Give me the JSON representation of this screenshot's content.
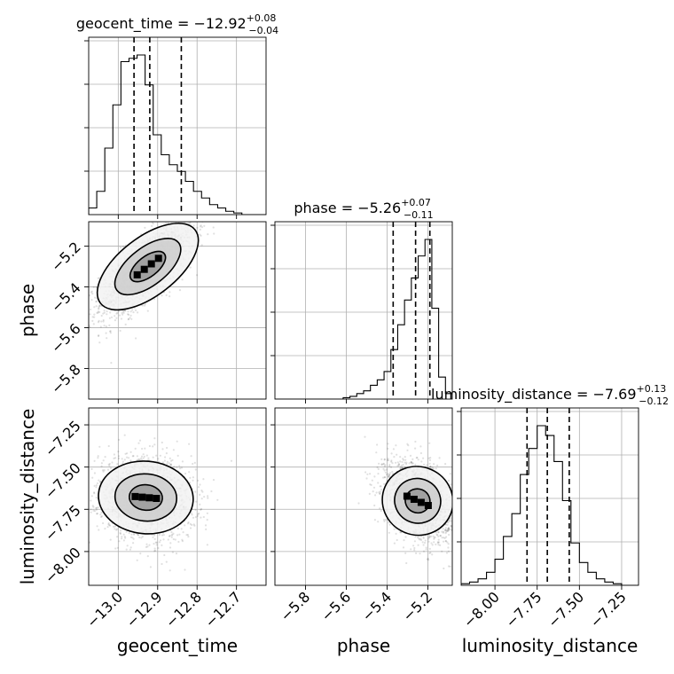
{
  "chart_data": {
    "type": "corner",
    "grid": true,
    "parameters": [
      {
        "name": "geocent_time",
        "title_main": "geocent_time = −12.92",
        "title_sup": "+0.08",
        "title_sub": "−0.04",
        "range": [
          -13.075,
          -12.625
        ],
        "ticks": [
          -13.0,
          -12.9,
          -12.8,
          -12.7
        ],
        "tick_labels": [
          "−13.0",
          "−12.9",
          "−12.8",
          "−12.7"
        ],
        "quantiles": [
          -12.96,
          -12.92,
          -12.84
        ],
        "hist_counts": [
          2,
          7,
          20,
          33,
          46,
          47,
          48,
          39,
          24,
          18,
          15,
          13,
          10,
          7,
          5,
          3,
          2,
          1,
          0.5,
          0,
          0,
          0
        ]
      },
      {
        "name": "phase",
        "title_main": "phase = −5.26",
        "title_sup": "+0.07",
        "title_sub": "−0.11",
        "range": [
          -5.95,
          -5.08
        ],
        "ticks": [
          -5.8,
          -5.6,
          -5.4,
          -5.2
        ],
        "tick_labels": [
          "−5.8",
          "−5.6",
          "−5.4",
          "−5.2"
        ],
        "quantiles": [
          -5.37,
          -5.26,
          -5.19
        ],
        "hist_counts": [
          0,
          0,
          0,
          0,
          0,
          0,
          0,
          0,
          0,
          0,
          0.5,
          1,
          2,
          3,
          5,
          7,
          10,
          18,
          27,
          36,
          44,
          52,
          58,
          33,
          8,
          2
        ]
      },
      {
        "name": "luminosity_distance",
        "title_main": "luminosity_distance = −7.69",
        "title_sup": "+0.13",
        "title_sub": "−0.12",
        "range": [
          -8.2,
          -7.15
        ],
        "ticks": [
          -8.0,
          -7.75,
          -7.5,
          -7.25
        ],
        "tick_labels": [
          "−8.00",
          "−7.75",
          "−7.50",
          "−7.25"
        ],
        "quantiles": [
          -7.81,
          -7.69,
          -7.56
        ],
        "hist_counts": [
          0.5,
          1,
          2,
          4,
          8,
          15,
          22,
          34,
          42,
          49,
          46,
          38,
          26,
          13,
          7,
          4,
          2,
          1,
          0.5,
          0,
          0
        ]
      }
    ],
    "pairs": [
      {
        "x_param": "geocent_time",
        "y_param": "phase",
        "mean": [
          -12.925,
          -5.3
        ],
        "sd": [
          0.06,
          0.12
        ],
        "corr": 0.75
      },
      {
        "x_param": "geocent_time",
        "y_param": "luminosity_distance",
        "mean": [
          -12.93,
          -7.68
        ],
        "sd": [
          0.06,
          0.12
        ],
        "corr": -0.1
      },
      {
        "x_param": "phase",
        "y_param": "luminosity_distance",
        "mean": [
          -5.25,
          -7.7
        ],
        "sd": [
          0.08,
          0.12
        ],
        "corr": -0.35
      }
    ]
  }
}
